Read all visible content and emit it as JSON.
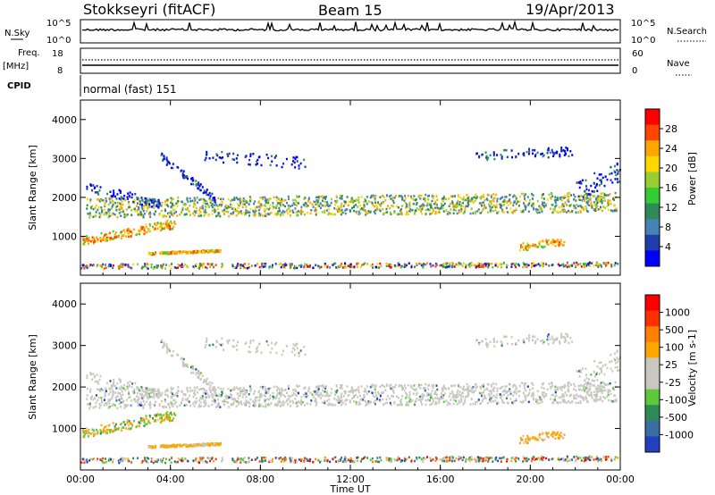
{
  "header": {
    "station": "Stokkseyri (fitACF)",
    "beam": "Beam 15",
    "date": "19/Apr/2013"
  },
  "noise_panel": {
    "left_label": "N.Sky",
    "right_label": "N.Search",
    "left_ticks": [
      "10^5",
      "10^0"
    ],
    "right_ticks": [
      "10^5",
      "10^0"
    ]
  },
  "freq_panel": {
    "left_label_1": "Freq.",
    "left_label_2": "[MHz]",
    "left_ticks": [
      "18",
      "8"
    ],
    "right_label": "Nave",
    "right_ticks": [
      "60",
      "0"
    ]
  },
  "cpid_panel": {
    "label": "CPID",
    "text": "normal (fast) 151"
  },
  "chart_data": [
    {
      "type": "heatmap",
      "name": "power",
      "ylabel": "Slant Range [km]",
      "ylim": [
        0,
        4500
      ],
      "xlim": [
        0,
        24
      ],
      "yticks": [
        "4000",
        "3000",
        "2000",
        "1000"
      ],
      "colorbar_label": "Power [dB]",
      "colorbar_ticks": [
        "28",
        "24",
        "20",
        "16",
        "12",
        "8",
        "4"
      ],
      "colors": [
        "#0000ff",
        "#1e3caa",
        "#4682b4",
        "#2e8b57",
        "#32cd32",
        "#9acd32",
        "#ffd700",
        "#ffa500",
        "#ff4500",
        "#ff0000"
      ]
    },
    {
      "type": "heatmap",
      "name": "velocity",
      "ylabel": "Slant Range [km]",
      "ylim": [
        0,
        4500
      ],
      "xlim": [
        0,
        24
      ],
      "yticks": [
        "4000",
        "3000",
        "2000",
        "1000"
      ],
      "colorbar_label": "Velocity [m s-1]",
      "colorbar_ticks": [
        "1000",
        "500",
        "100",
        "25",
        "-25",
        "-100",
        "-500",
        "-1000"
      ],
      "xticks": [
        "00:00",
        "04:00",
        "08:00",
        "12:00",
        "16:00",
        "20:00",
        "00:00"
      ],
      "xlabel": "Time UT",
      "colors": [
        "#2040c0",
        "#3a6ea5",
        "#2e8b57",
        "#5dc83a",
        "#c8c8c0",
        "#c8c8c0",
        "#ffa500",
        "#ff7f00",
        "#ff3000",
        "#ff0000"
      ]
    }
  ]
}
